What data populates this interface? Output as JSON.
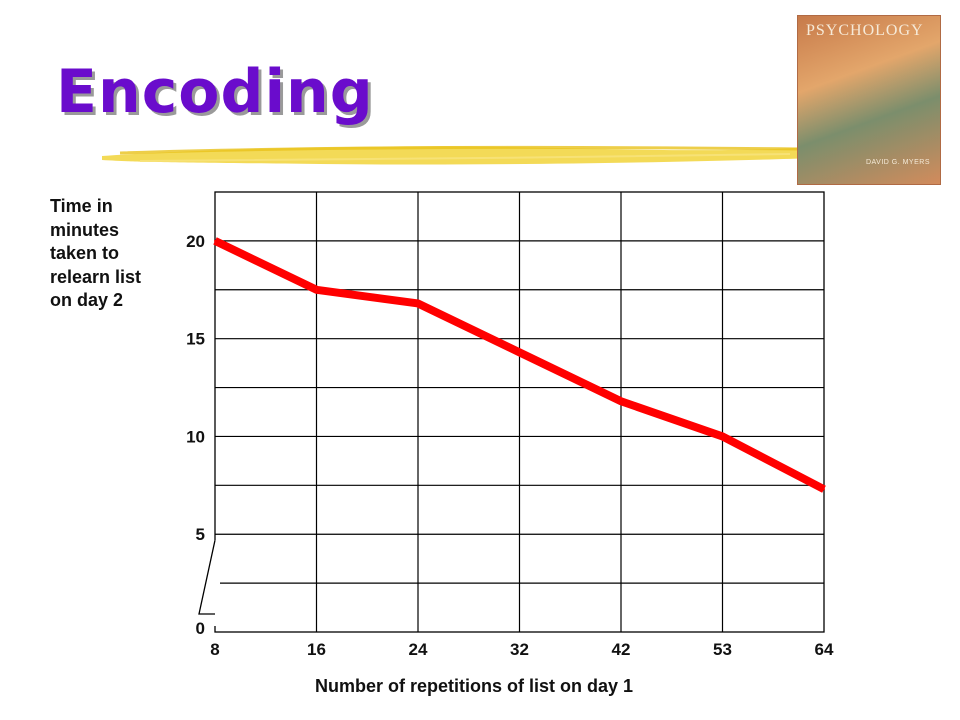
{
  "slide": {
    "title": "Encoding",
    "book_cover": {
      "title": "PSYCHOLOGY",
      "author": "DAVID G. MYERS"
    }
  },
  "colors": {
    "title": "#6a0ccc",
    "line": "#ff0000",
    "brush": "#f1d33a"
  },
  "chart_data": {
    "type": "line",
    "title": "",
    "xlabel": "Number of repetitions of list on day 1",
    "ylabel": "Time in minutes taken to relearn list on day 2",
    "categories": [
      "8",
      "16",
      "24",
      "32",
      "42",
      "53",
      "64"
    ],
    "series": [
      {
        "values": [
          20,
          17.5,
          16.8,
          14.3,
          11.8,
          10,
          7.3
        ]
      }
    ],
    "y_ticks": [
      "20",
      "15",
      "10",
      "5",
      "0"
    ],
    "ylim": [
      0,
      22.5
    ],
    "y_axis_break": true,
    "grid": true
  }
}
